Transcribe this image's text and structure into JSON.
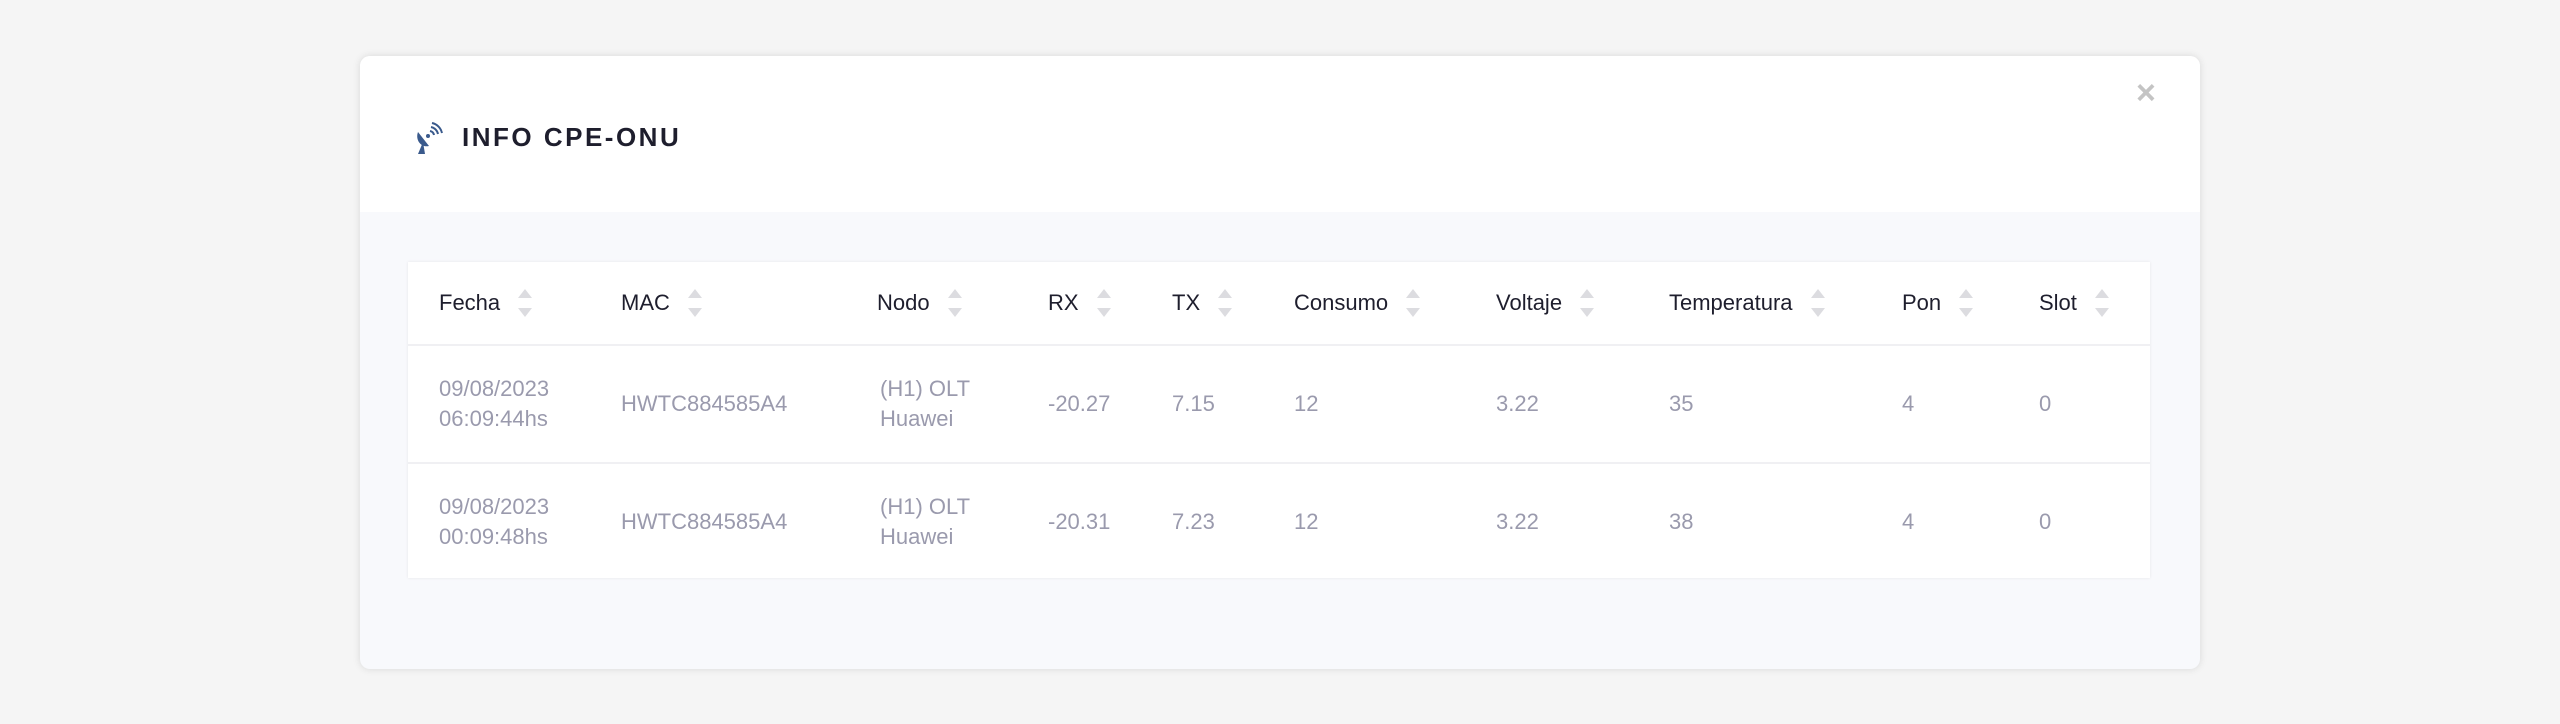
{
  "modal": {
    "title": "INFO CPE-ONU",
    "title_icon": "satellite-dish-icon",
    "close_icon": "close-icon",
    "close_label": "×"
  },
  "table": {
    "columns": [
      "Fecha",
      "MAC",
      "Nodo",
      "RX",
      "TX",
      "Consumo",
      "Voltaje",
      "Temperatura",
      "Pon",
      "Slot"
    ],
    "rows": [
      [
        "09/08/2023\n06:09:44hs",
        "HWTC884585A4",
        "(H1) OLT\nHuawei",
        "-20.27",
        "7.15",
        "12",
        "3.22",
        "35",
        "4",
        "0"
      ],
      [
        "09/08/2023\n00:09:48hs",
        "HWTC884585A4",
        "(H1) OLT\nHuawei",
        "-20.31",
        "7.23",
        "12",
        "3.22",
        "38",
        "4",
        "0"
      ]
    ]
  },
  "colors": {
    "title": "#1e1e2d",
    "icon": "#3a5a8c",
    "cell_text": "#9a9aad",
    "panel_bg": "#f8f9fc"
  }
}
